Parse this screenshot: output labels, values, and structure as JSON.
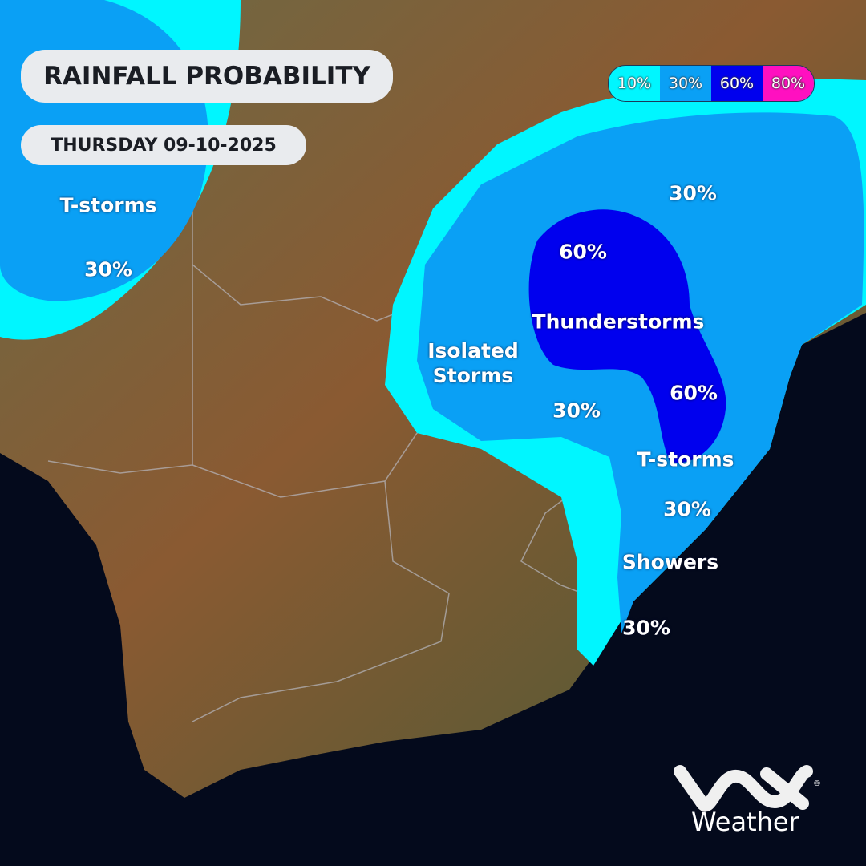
{
  "header": {
    "title": "RAINFALL PROBABILITY",
    "date": "THURSDAY 09-10-2025"
  },
  "legend": [
    {
      "label": "10%",
      "color": "#00f6ff"
    },
    {
      "label": "30%",
      "color": "#0aa0f5"
    },
    {
      "label": "60%",
      "color": "#0000ee"
    },
    {
      "label": "80%",
      "color": "#ff10c0"
    }
  ],
  "labels": {
    "west_type": "T-storms",
    "west_pct": "30%",
    "north_pct": "30%",
    "central_60": "60%",
    "thunder": "Thunderstorms",
    "isolated": "Isolated Storms",
    "mid_30": "30%",
    "east_60": "60%",
    "tstorms": "T-storms",
    "coast_30": "30%",
    "showers": "Showers",
    "south_30": "30%"
  },
  "brand": {
    "logo": "vox",
    "name": "Weather"
  }
}
